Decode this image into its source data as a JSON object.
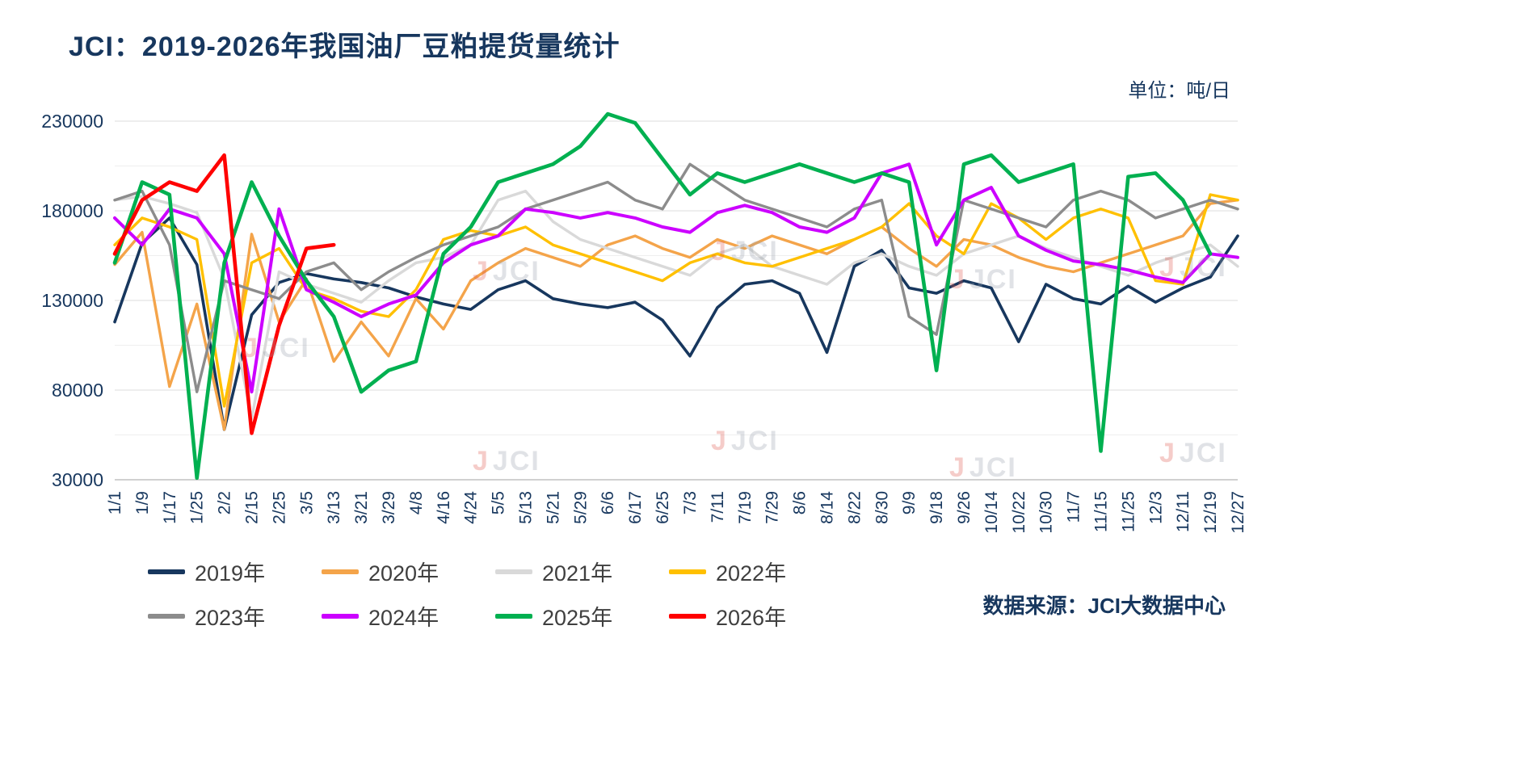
{
  "title": "JCI：2019-2026年我国油厂豆粕提货量统计",
  "unit_label": "单位：吨/日",
  "source_label": "数据来源：JCI大数据中心",
  "watermark": {
    "prefix": "J",
    "text": "JCI"
  },
  "colors": {
    "title": "#17375e",
    "axis_text": "#17375e",
    "grid_major": "#dcdcdc",
    "grid_minor": "#efefef",
    "legend_text": "#3f3f3f"
  },
  "chart_data": {
    "type": "line",
    "title": "JCI：2019-2026年我国油厂豆粕提货量统计",
    "ylabel": "吨/日",
    "xlabel": "",
    "ylim": [
      30000,
      230000
    ],
    "yticks": [
      30000,
      80000,
      130000,
      180000,
      230000
    ],
    "grid_step": 25000,
    "grid": true,
    "legend_position": "bottom",
    "x": [
      "1/1",
      "1/9",
      "1/17",
      "1/25",
      "2/2",
      "2/15",
      "2/25",
      "3/5",
      "3/13",
      "3/21",
      "3/29",
      "4/8",
      "4/16",
      "4/24",
      "5/5",
      "5/13",
      "5/21",
      "5/29",
      "6/6",
      "6/17",
      "6/25",
      "7/3",
      "7/11",
      "7/19",
      "7/29",
      "8/6",
      "8/14",
      "8/22",
      "8/30",
      "9/9",
      "9/18",
      "9/26",
      "10/14",
      "10/22",
      "10/30",
      "11/7",
      "11/15",
      "11/25",
      "12/3",
      "12/11",
      "12/19",
      "12/27"
    ],
    "series": [
      {
        "name": "2019年",
        "color": "#17375e",
        "values": [
          118000,
          162000,
          176000,
          150000,
          58000,
          122000,
          140000,
          145000,
          142000,
          140000,
          137000,
          132000,
          128000,
          125000,
          136000,
          141000,
          131000,
          128000,
          126000,
          129000,
          119000,
          99000,
          126000,
          139000,
          141000,
          134000,
          101000,
          149000,
          158000,
          137000,
          134000,
          141000,
          137000,
          107000,
          139000,
          131000,
          128000,
          138000,
          129000,
          137000,
          143000,
          166000
        ]
      },
      {
        "name": "2020年",
        "color": "#f4a44a",
        "values": [
          150000,
          168000,
          82000,
          128000,
          58000,
          167000,
          118000,
          142000,
          96000,
          118000,
          99000,
          131000,
          114000,
          141000,
          151000,
          159000,
          154000,
          149000,
          161000,
          166000,
          159000,
          154000,
          164000,
          159000,
          166000,
          161000,
          156000,
          164000,
          171000,
          159000,
          149000,
          164000,
          161000,
          154000,
          149000,
          146000,
          151000,
          156000,
          161000,
          166000,
          184000,
          186000
        ]
      },
      {
        "name": "2021年",
        "color": "#d9d9d9",
        "values": [
          186000,
          188000,
          184000,
          179000,
          142000,
          64000,
          146000,
          139000,
          134000,
          129000,
          141000,
          151000,
          154000,
          161000,
          186000,
          191000,
          174000,
          164000,
          159000,
          154000,
          149000,
          144000,
          156000,
          161000,
          149000,
          144000,
          139000,
          151000,
          156000,
          149000,
          144000,
          156000,
          161000,
          166000,
          159000,
          154000,
          149000,
          144000,
          151000,
          156000,
          161000,
          149000
        ]
      },
      {
        "name": "2022年",
        "color": "#ffc000",
        "values": [
          161000,
          176000,
          171000,
          164000,
          71000,
          151000,
          159000,
          136000,
          131000,
          124000,
          121000,
          136000,
          164000,
          169000,
          166000,
          171000,
          161000,
          156000,
          151000,
          146000,
          141000,
          151000,
          156000,
          151000,
          149000,
          154000,
          159000,
          164000,
          171000,
          184000,
          166000,
          156000,
          184000,
          176000,
          164000,
          176000,
          181000,
          176000,
          141000,
          139000,
          189000,
          186000
        ]
      },
      {
        "name": "2023年",
        "color": "#8c8c8c",
        "values": [
          186000,
          191000,
          161000,
          79000,
          141000,
          136000,
          131000,
          146000,
          151000,
          136000,
          146000,
          154000,
          161000,
          166000,
          171000,
          181000,
          186000,
          191000,
          196000,
          186000,
          181000,
          206000,
          196000,
          186000,
          181000,
          176000,
          171000,
          181000,
          186000,
          121000,
          111000,
          186000,
          181000,
          176000,
          171000,
          186000,
          191000,
          186000,
          176000,
          181000,
          186000,
          181000
        ]
      },
      {
        "name": "2024年",
        "color": "#cc00ff",
        "values": [
          176000,
          161000,
          181000,
          176000,
          156000,
          79000,
          181000,
          136000,
          129000,
          121000,
          128000,
          133000,
          151000,
          161000,
          166000,
          181000,
          179000,
          176000,
          179000,
          176000,
          171000,
          168000,
          179000,
          183000,
          179000,
          171000,
          168000,
          176000,
          201000,
          206000,
          161000,
          186000,
          193000,
          166000,
          158000,
          152000,
          150000,
          147000,
          143000,
          140000,
          156000,
          154000
        ]
      },
      {
        "name": "2025年",
        "color": "#00b050",
        "values": [
          151000,
          196000,
          189000,
          31000,
          151000,
          196000,
          166000,
          141000,
          121000,
          79000,
          91000,
          96000,
          156000,
          171000,
          196000,
          201000,
          206000,
          216000,
          234000,
          229000,
          209000,
          189000,
          201000,
          196000,
          201000,
          206000,
          201000,
          196000,
          201000,
          196000,
          91000,
          206000,
          211000,
          196000,
          201000,
          206000,
          46000,
          199000,
          201000,
          186000,
          156000,
          null
        ]
      },
      {
        "name": "2026年",
        "color": "#ff0000",
        "values": [
          156000,
          186000,
          196000,
          191000,
          211000,
          56000,
          116000,
          159000,
          161000,
          null,
          null,
          null,
          null,
          null,
          null,
          null,
          null,
          null,
          null,
          null,
          null,
          null,
          null,
          null,
          null,
          null,
          null,
          null,
          null,
          null,
          null,
          null,
          null,
          null,
          null,
          null,
          null,
          null,
          null,
          null,
          null,
          null
        ]
      }
    ]
  }
}
